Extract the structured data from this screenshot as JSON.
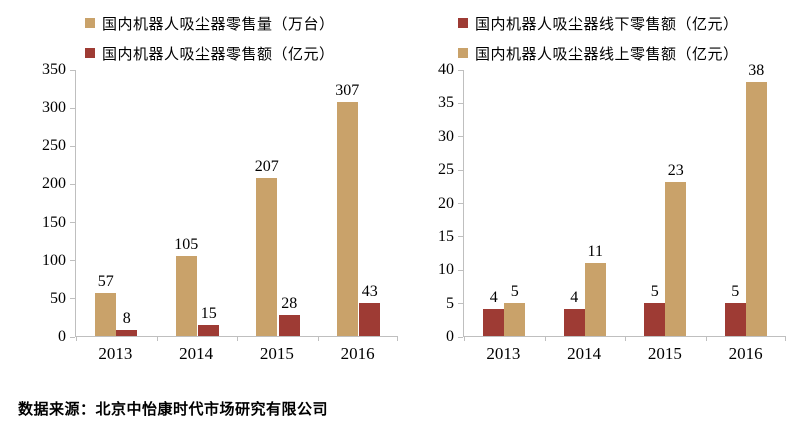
{
  "source_note": "数据来源：北京中怡康时代市场研究有限公司",
  "colors": {
    "tan": "#C9A26A",
    "red": "#9E3B34",
    "axis": "#BFBFBF"
  },
  "chart_data": [
    {
      "type": "bar",
      "categories": [
        "2013",
        "2014",
        "2015",
        "2016"
      ],
      "series": [
        {
          "name": "国内机器人吸尘器零售量（万台）",
          "color_key": "tan",
          "values": [
            57,
            105,
            207,
            307
          ]
        },
        {
          "name": "国内机器人吸尘器零售额（亿元）",
          "color_key": "red",
          "values": [
            8,
            15,
            28,
            43
          ]
        }
      ],
      "title": "",
      "xlabel": "",
      "ylabel": "",
      "ylim": [
        0,
        350
      ],
      "ystep": 50,
      "grid": false,
      "legend_position": "top"
    },
    {
      "type": "bar",
      "categories": [
        "2013",
        "2014",
        "2015",
        "2016"
      ],
      "series": [
        {
          "name": "国内机器人吸尘器线下零售额（亿元）",
          "color_key": "red",
          "values": [
            4,
            4,
            5,
            5
          ]
        },
        {
          "name": "国内机器人吸尘器线上零售额（亿元）",
          "color_key": "tan",
          "values": [
            5,
            11,
            23,
            38
          ]
        }
      ],
      "title": "",
      "xlabel": "",
      "ylabel": "",
      "ylim": [
        0,
        40
      ],
      "ystep": 5,
      "grid": false,
      "legend_position": "top"
    }
  ]
}
